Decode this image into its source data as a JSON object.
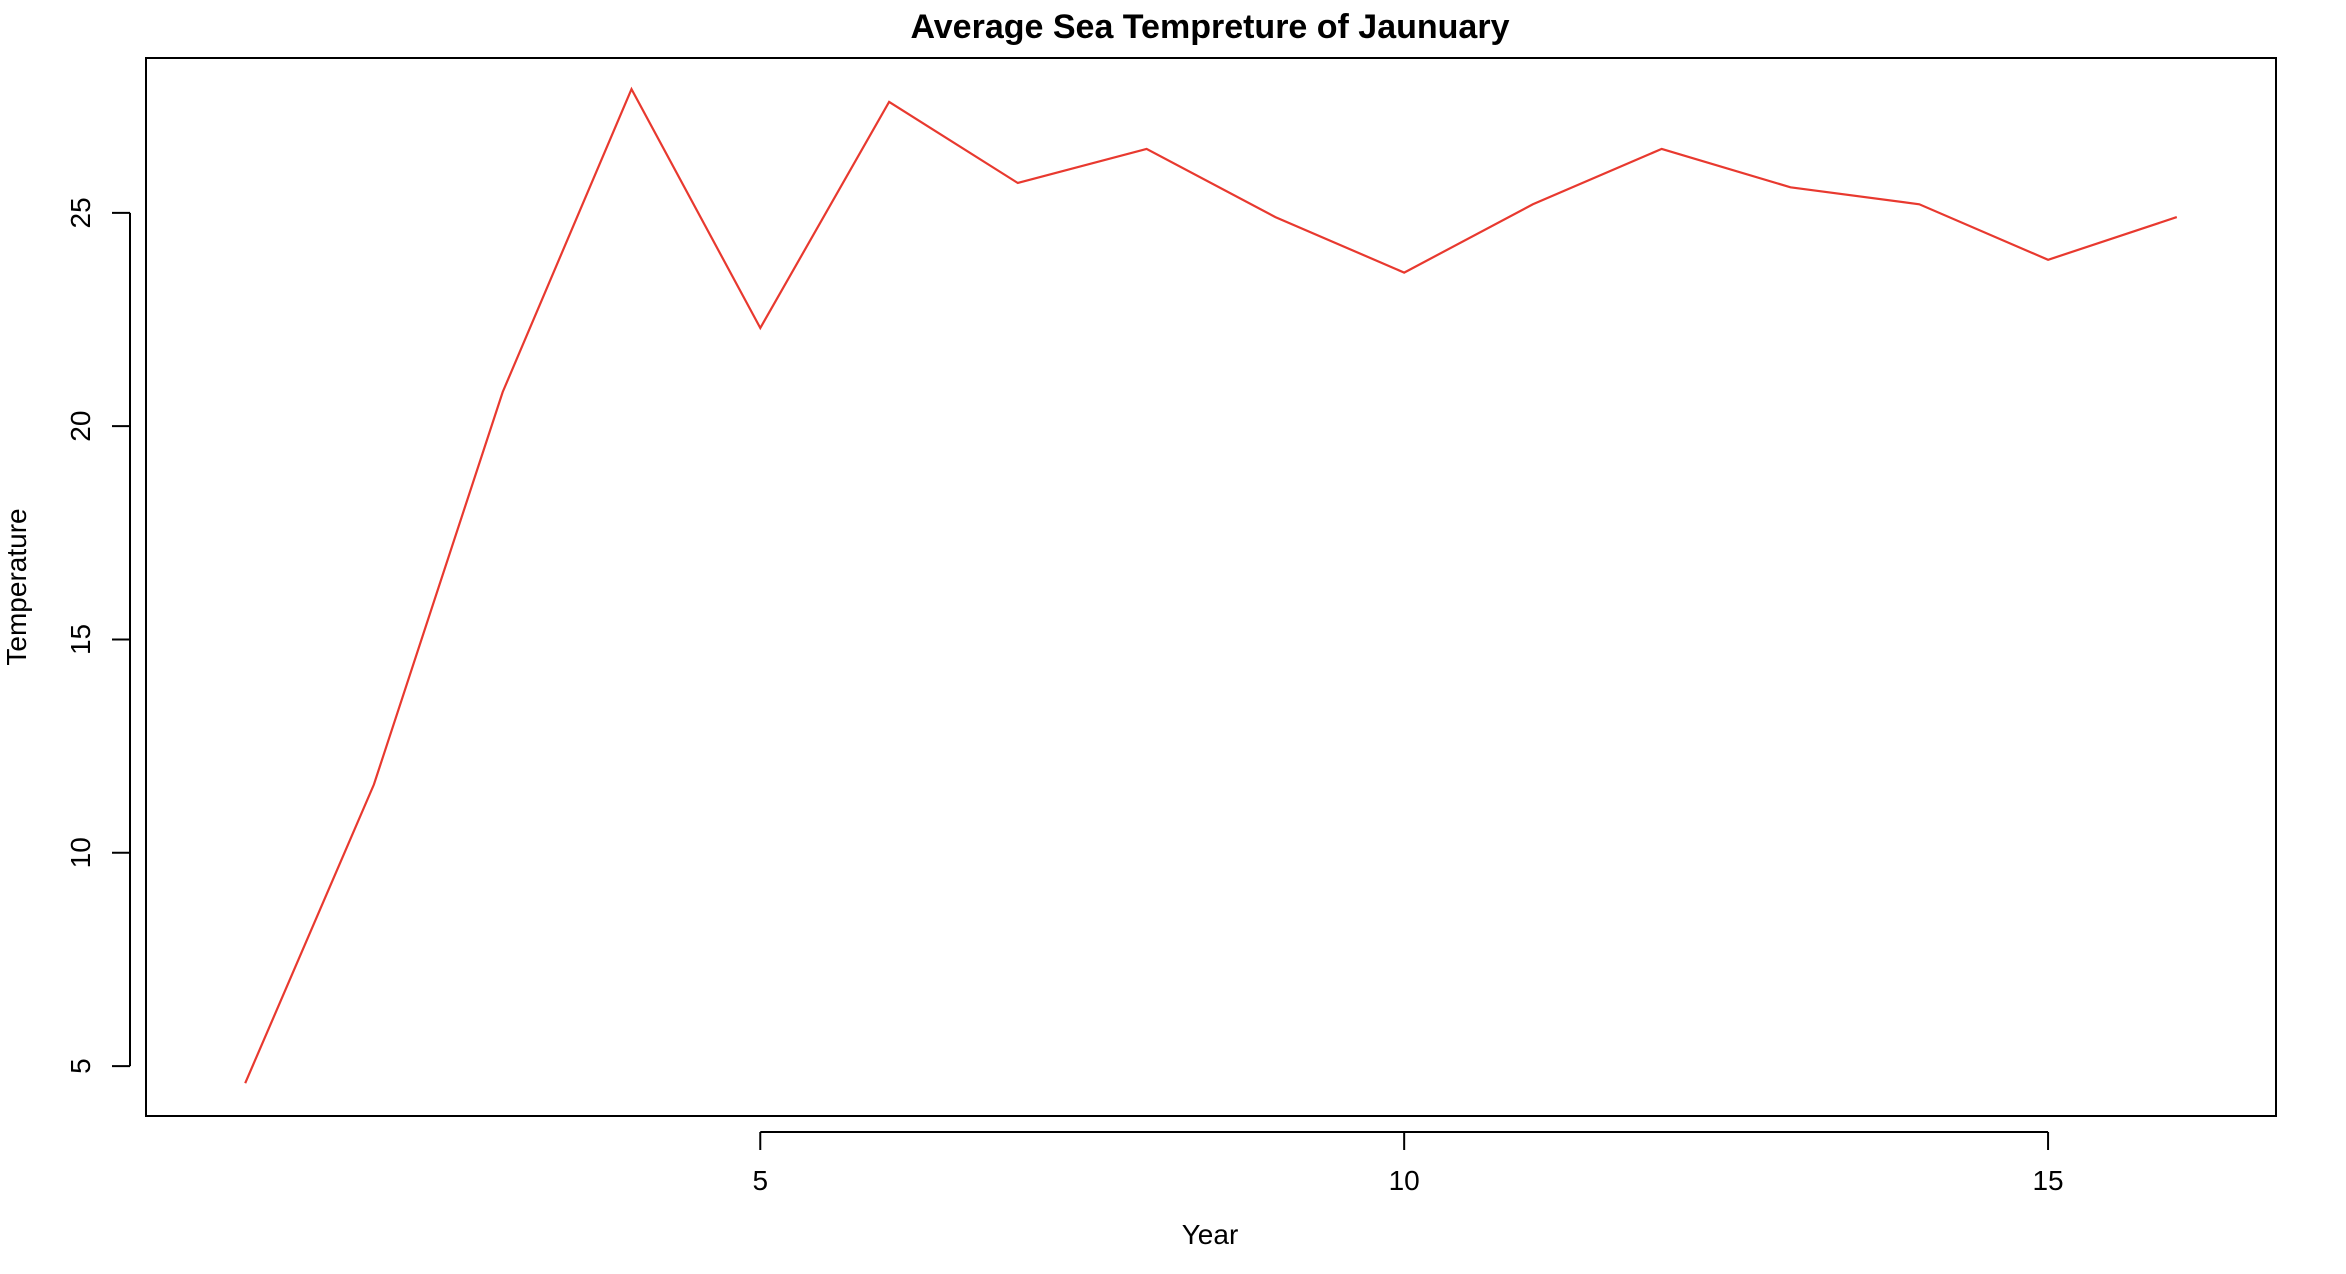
{
  "chart_data": {
    "type": "line",
    "title": "Average Sea Tempreture of Jaunuary",
    "xlabel": "Year",
    "ylabel": "Temperature",
    "x": [
      1,
      2,
      3,
      4,
      5,
      6,
      7,
      8,
      9,
      10,
      11,
      12,
      13,
      14,
      15,
      16
    ],
    "series": [
      {
        "values": [
          4.6,
          11.6,
          20.8,
          27.9,
          22.3,
          27.6,
          25.7,
          26.5,
          24.9,
          23.6,
          25.2,
          26.5,
          25.6,
          25.2,
          23.9,
          24.9
        ],
        "color": "#e8392f"
      }
    ],
    "xlim": [
      0.23,
      16.77
    ],
    "ylim": [
      3.83,
      28.63
    ],
    "xticks": [
      5,
      10,
      15
    ],
    "yticks": [
      5,
      10,
      15,
      20,
      25
    ],
    "xtick_labels": [
      "5",
      "10",
      "15"
    ],
    "ytick_labels": [
      "5",
      "10",
      "15",
      "20",
      "25"
    ],
    "grid": false,
    "legend": "none"
  }
}
